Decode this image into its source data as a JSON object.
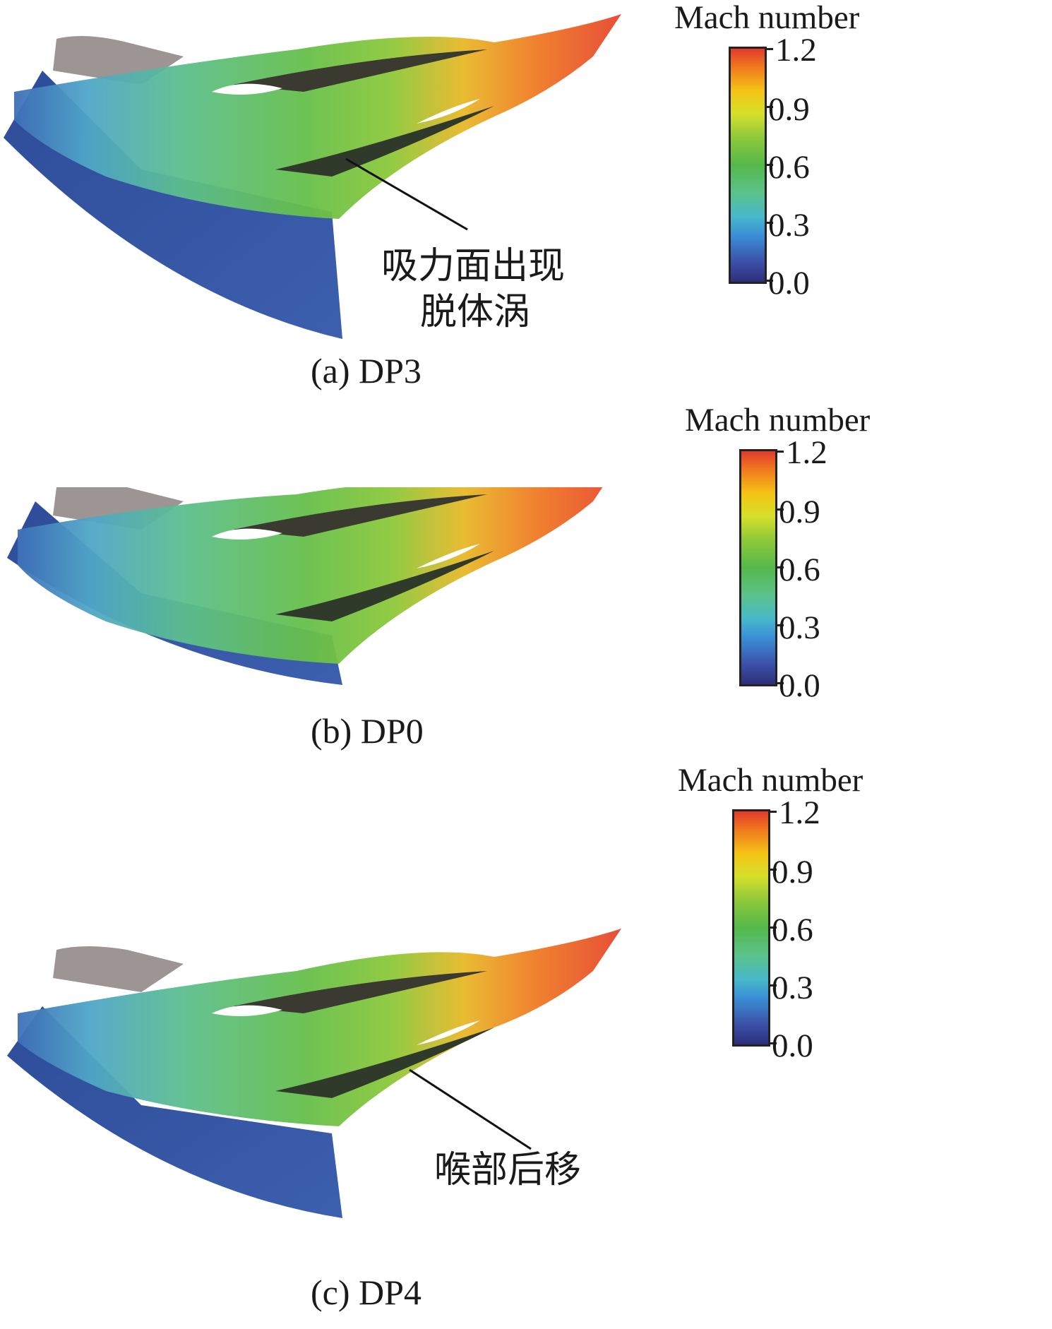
{
  "colorbar": {
    "title": "Mach number",
    "ticks": [
      "1.2",
      "0.9",
      "0.6",
      "0.3",
      "0.0"
    ],
    "colors": [
      "#2c2f7a",
      "#3a8fd6",
      "#48b8c9",
      "#55b84a",
      "#d4e02a",
      "#f5c316",
      "#f07a1e",
      "#e23a2a"
    ]
  },
  "panels": [
    {
      "caption": "(a) DP3",
      "annotation_lines": [
        "吸力面出现",
        "脱体涡"
      ]
    },
    {
      "caption": "(b) DP0"
    },
    {
      "caption": "(c) DP4",
      "annotation_lines": [
        "喉部后移"
      ]
    }
  ]
}
